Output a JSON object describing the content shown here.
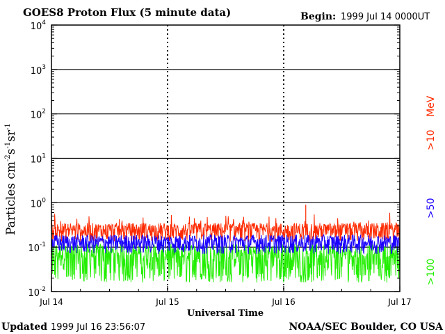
{
  "header": {
    "title": "GOES8 Proton Flux (5 minute data)",
    "begin_label": "Begin:",
    "begin_value": "1999 Jul 14 0000UT"
  },
  "footer": {
    "updated_label": "Updated",
    "updated_value": "1999 Jul 16 23:56:07",
    "source": "NOAA/SEC Boulder, CO USA"
  },
  "axes": {
    "y_label_main": "Particles cm",
    "y_label_unit2": "s",
    "y_label_unit3": "sr",
    "y_label_exp": "-1",
    "y_label_exp_cm": "-2",
    "x_label": "Universal Time",
    "y_ticks": [
      {
        "base": "10",
        "exp": "4",
        "value": 10000
      },
      {
        "base": "10",
        "exp": "3",
        "value": 1000
      },
      {
        "base": "10",
        "exp": "2",
        "value": 100
      },
      {
        "base": "10",
        "exp": "1",
        "value": 10
      },
      {
        "base": "10",
        "exp": "0",
        "value": 1
      },
      {
        "base": "10",
        "exp": "-1",
        "value": 0.1
      },
      {
        "base": "10",
        "exp": "-2",
        "value": 0.01
      }
    ],
    "x_ticks": [
      "Jul 14",
      "Jul 15",
      "Jul 16",
      "Jul 17"
    ]
  },
  "legend": [
    {
      "label": ">10",
      "color": "#ff2a00"
    },
    {
      "label": "MeV",
      "color": "#ff2a00"
    },
    {
      "label": ">50",
      "color": "#1a00ff"
    },
    {
      "label": ">100",
      "color": "#22ee00"
    }
  ],
  "colors": {
    "p10": "#ff2a00",
    "p50": "#1a00ff",
    "p100": "#22ee00",
    "axis": "#000000"
  },
  "chart_data": {
    "type": "line",
    "title": "GOES8 Proton Flux (5 minute data)",
    "xlabel": "Universal Time",
    "ylabel": "Particles cm-2 s-1 sr-1",
    "y_scale": "log",
    "ylim": [
      0.01,
      10000
    ],
    "x_range": [
      "1999-07-14 00:00",
      "1999-07-17 00:00"
    ],
    "x_ticks": [
      "Jul 14",
      "Jul 15",
      "Jul 16",
      "Jul 17"
    ],
    "grid": "horizontal lines at each decade",
    "series": [
      {
        "name": ">10 MeV",
        "color": "#ff2a00",
        "typical_range": [
          0.1,
          0.5
        ],
        "peak": 0.9
      },
      {
        "name": ">50 MeV",
        "color": "#1a00ff",
        "typical_range": [
          0.06,
          0.2
        ]
      },
      {
        "name": ">100 MeV",
        "color": "#22ee00",
        "typical_range": [
          0.015,
          0.12
        ]
      }
    ]
  }
}
